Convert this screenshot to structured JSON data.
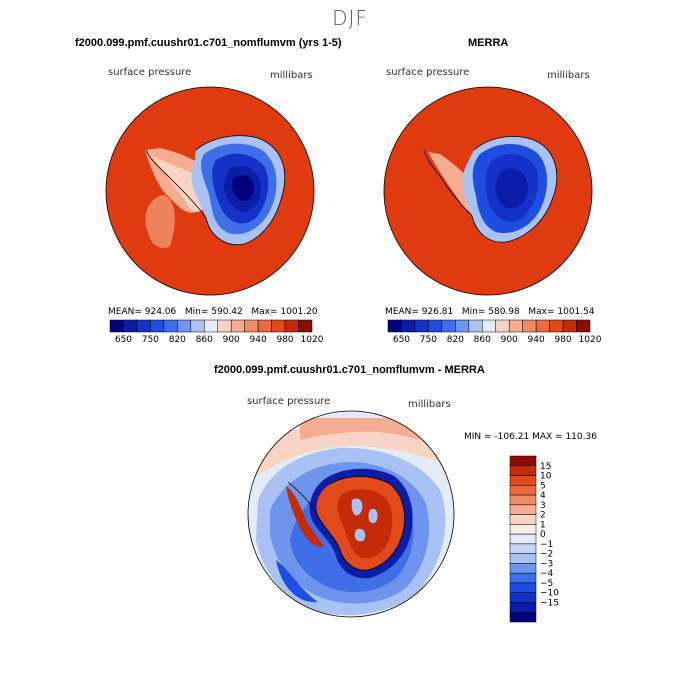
{
  "header": {
    "season": "DJF"
  },
  "panels": [
    {
      "title": "f2000.099.pmf.cuushr01.c701_nomflumvm (yrs 1-5)",
      "variable": "surface pressure",
      "units": "millibars",
      "stats": {
        "mean": "924.06",
        "min": "590.42",
        "max": "1001.20"
      }
    },
    {
      "title": "MERRA",
      "variable": "surface pressure",
      "units": "millibars",
      "stats": {
        "mean": "926.81",
        "min": "580.98",
        "max": "1001.54"
      }
    },
    {
      "title": "f2000.099.pmf.cuushr01.c701_nomflumvm - MERRA",
      "variable": "surface pressure",
      "units": "millibars",
      "stats": {
        "min": "-106.21",
        "max": "110.36"
      }
    }
  ],
  "labels": {
    "mean": "MEAN=",
    "min": "Min=",
    "max": "Max=",
    "min_upper": "MIN =",
    "max_upper": "MAX ="
  },
  "chart_data": [
    {
      "type": "heatmap",
      "projection": "south-polar-stereographic",
      "title": "f2000.099.pmf.cuushr01.c701_nomflumvm (yrs 1-5)",
      "variable": "surface pressure",
      "units": "millibars",
      "colorbar": {
        "orientation": "horizontal",
        "levels": [
          650,
          700,
          750,
          800,
          820,
          840,
          860,
          880,
          900,
          920,
          940,
          960,
          980,
          1000,
          1020
        ],
        "tick_labels": [
          "650",
          "750",
          "820",
          "860",
          "900",
          "940",
          "980",
          "1020"
        ],
        "colors": [
          "#00007f",
          "#0a1ca8",
          "#1432c8",
          "#1e4ee0",
          "#3f6fe8",
          "#6f94ee",
          "#a9c1f3",
          "#e6ecf7",
          "#f7d4c3",
          "#f4ad90",
          "#f08b66",
          "#ec6a3e",
          "#e24a1c",
          "#c42c08",
          "#8c0d00"
        ]
      },
      "stats": {
        "mean": 924.06,
        "min": 590.42,
        "max": 1001.2
      }
    },
    {
      "type": "heatmap",
      "projection": "south-polar-stereographic",
      "title": "MERRA",
      "variable": "surface pressure",
      "units": "millibars",
      "colorbar": {
        "orientation": "horizontal",
        "levels": [
          650,
          700,
          750,
          800,
          820,
          840,
          860,
          880,
          900,
          920,
          940,
          960,
          980,
          1000,
          1020
        ],
        "tick_labels": [
          "650",
          "750",
          "820",
          "860",
          "900",
          "940",
          "980",
          "1020"
        ],
        "colors": [
          "#00007f",
          "#0a1ca8",
          "#1432c8",
          "#1e4ee0",
          "#3f6fe8",
          "#6f94ee",
          "#a9c1f3",
          "#e6ecf7",
          "#f7d4c3",
          "#f4ad90",
          "#f08b66",
          "#ec6a3e",
          "#e24a1c",
          "#c42c08",
          "#8c0d00"
        ]
      },
      "stats": {
        "mean": 926.81,
        "min": 580.98,
        "max": 1001.54
      }
    },
    {
      "type": "heatmap",
      "projection": "south-polar-stereographic",
      "title": "f2000.099.pmf.cuushr01.c701_nomflumvm - MERRA",
      "variable": "surface pressure",
      "units": "millibars",
      "colorbar": {
        "orientation": "vertical",
        "levels": [
          -15,
          -10,
          -5,
          -4,
          -3,
          -2,
          -1,
          0,
          1,
          2,
          3,
          4,
          5,
          10,
          15
        ],
        "tick_labels": [
          "15",
          "10",
          "5",
          "4",
          "3",
          "2",
          "1",
          "0",
          "−1",
          "−2",
          "−3",
          "−4",
          "−5",
          "−10",
          "−15"
        ],
        "colors": [
          "#8c0d00",
          "#c42c08",
          "#e24a1c",
          "#ec6a3e",
          "#f08b66",
          "#f4ad90",
          "#f7d4c3",
          "#fbece4",
          "#e6ecf7",
          "#c4d6f5",
          "#a9c1f3",
          "#6f94ee",
          "#3f6fe8",
          "#1e4ee0",
          "#1432c8",
          "#0a1ca8",
          "#00007f"
        ]
      },
      "stats": {
        "min": -106.21,
        "max": 110.36
      }
    }
  ]
}
